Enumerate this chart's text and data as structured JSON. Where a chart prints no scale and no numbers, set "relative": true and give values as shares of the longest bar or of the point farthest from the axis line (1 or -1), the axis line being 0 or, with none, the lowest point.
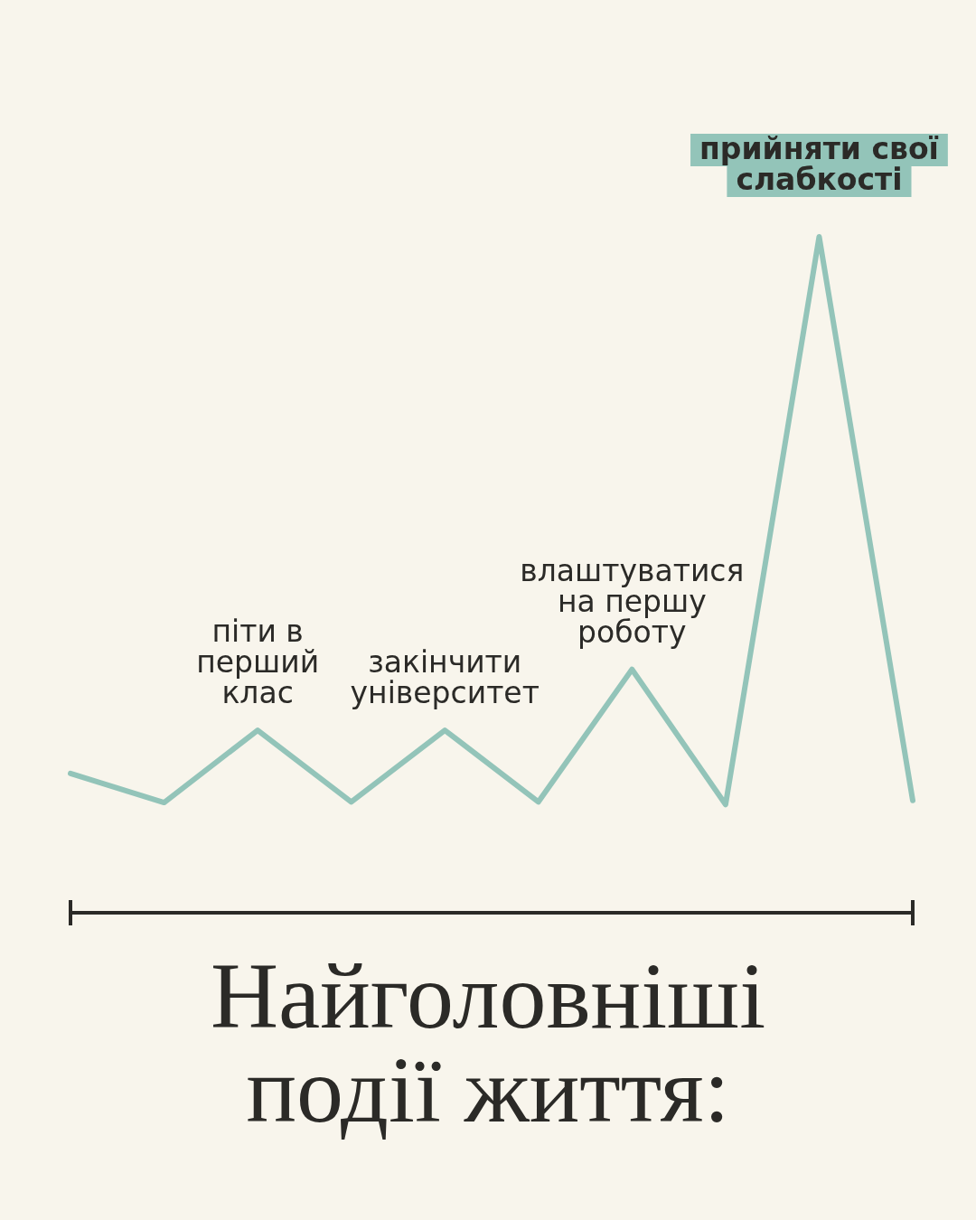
{
  "chart_data": {
    "type": "line",
    "title": "Найголовніші події життя:",
    "relative": true,
    "categories": [
      null,
      null,
      null,
      null,
      null,
      null,
      null,
      null,
      null,
      null
    ],
    "series": [
      {
        "color": "#93c4b9",
        "values": [
          0.206,
          0.163,
          0.27,
          0.164,
          0.27,
          0.164,
          0.36,
          0.16,
          1,
          0.166
        ]
      }
    ],
    "annotations": [
      "піти в\nперший\nклас",
      "закінчити\nуніверситет",
      "влаштуватися\nна першу\nроботу",
      "прийняти свої\nслабкості"
    ]
  }
}
